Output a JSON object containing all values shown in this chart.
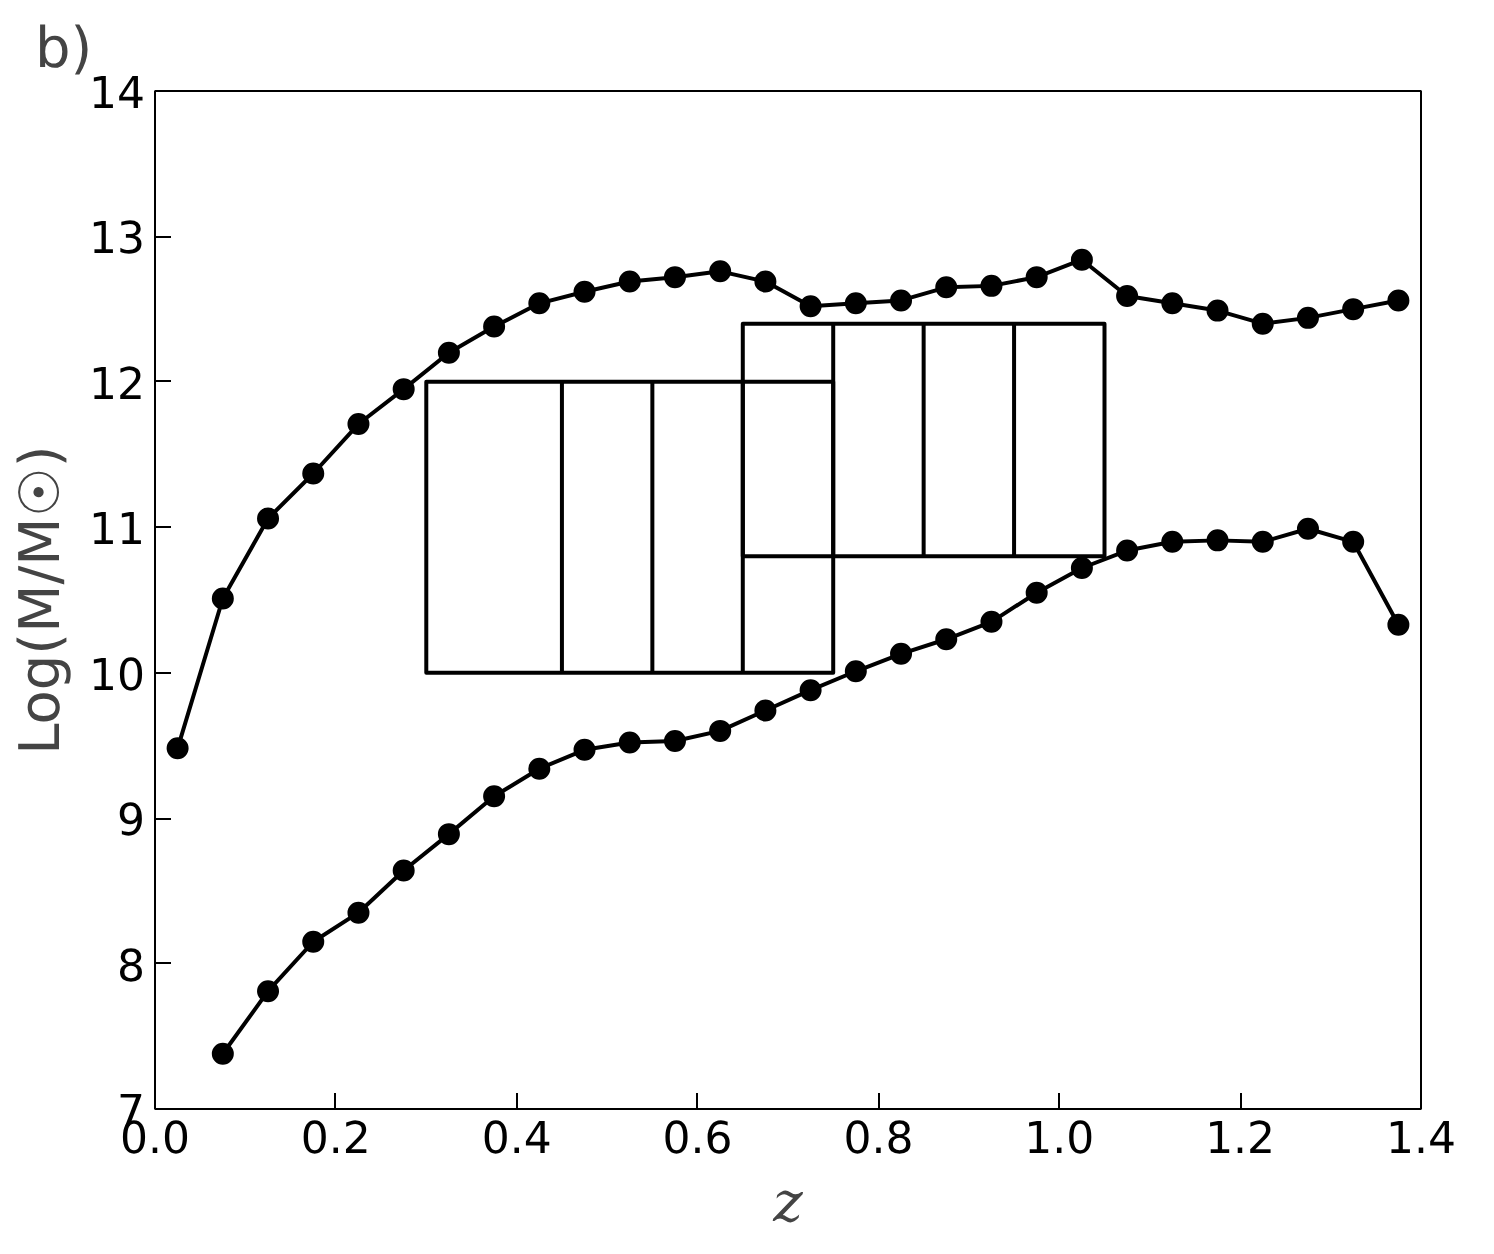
{
  "chart_data": {
    "type": "line",
    "title": "b)",
    "xlabel": "z",
    "ylabel": "Log(M/M☉)",
    "xlim": [
      0,
      1.4
    ],
    "ylim": [
      7,
      14
    ],
    "xticks": [
      {
        "value": 0,
        "label": "0.0"
      },
      {
        "value": 0.2,
        "label": "0.2"
      },
      {
        "value": 0.4,
        "label": "0.4"
      },
      {
        "value": 0.6,
        "label": "0.6"
      },
      {
        "value": 0.8,
        "label": "0.8"
      },
      {
        "value": 1,
        "label": "1.0"
      },
      {
        "value": 1.2,
        "label": "1.2"
      },
      {
        "value": 1.4,
        "label": "1.4"
      }
    ],
    "yticks": [
      7,
      8,
      9,
      10,
      11,
      12,
      13,
      14
    ],
    "grid": false,
    "marker": "circle",
    "line_style": "solid",
    "series": [
      {
        "color": "#000000",
        "x": [
          0.025,
          0.075,
          0.125,
          0.175,
          0.225,
          0.275,
          0.325,
          0.375,
          0.425,
          0.475,
          0.525,
          0.575,
          0.625,
          0.675,
          0.725,
          0.775,
          0.825,
          0.875,
          0.925,
          0.975,
          1.025,
          1.075,
          1.125,
          1.175,
          1.225,
          1.275,
          1.325,
          1.375
        ],
        "values": [
          9.48,
          10.51,
          11.06,
          11.37,
          11.71,
          11.95,
          12.2,
          12.38,
          12.54,
          12.62,
          12.69,
          12.72,
          12.76,
          12.69,
          12.52,
          12.54,
          12.56,
          12.65,
          12.66,
          12.72,
          12.84,
          12.59,
          12.54,
          12.49,
          12.4,
          12.44,
          12.5,
          12.56
        ]
      },
      {
        "color": "#000000",
        "x": [
          0.075,
          0.125,
          0.175,
          0.225,
          0.275,
          0.325,
          0.375,
          0.425,
          0.475,
          0.525,
          0.575,
          0.625,
          0.675,
          0.725,
          0.775,
          0.825,
          0.875,
          0.925,
          0.975,
          1.025,
          1.075,
          1.125,
          1.175,
          1.225,
          1.275,
          1.325,
          1.375
        ],
        "values": [
          7.38,
          7.81,
          8.15,
          8.35,
          8.64,
          8.89,
          9.15,
          9.34,
          9.47,
          9.52,
          9.53,
          9.6,
          9.74,
          9.88,
          10.01,
          10.13,
          10.23,
          10.35,
          10.55,
          10.72,
          10.84,
          10.9,
          10.91,
          10.9,
          10.99,
          10.9,
          10.33
        ]
      },
      {
        "color": "#000000",
        "marker": "none",
        "x": [
          0.3,
          0.3,
          0.45,
          0.45,
          0.55,
          0.55,
          0.65,
          0.65,
          0.75,
          0.75,
          0.3,
          0.3,
          0.75
        ],
        "values": [
          12,
          10,
          10,
          12,
          12,
          10,
          10,
          12,
          12,
          10,
          10,
          12,
          12
        ]
      },
      {
        "color": "#000000",
        "marker": "none",
        "x": [
          0.65,
          0.65,
          0.75,
          0.75,
          0.85,
          0.85,
          0.95,
          0.95,
          1.05,
          1.05,
          0.65,
          0.65,
          1.05
        ],
        "values": [
          10.8,
          12.4,
          12.4,
          10.8,
          10.8,
          12.4,
          12.4,
          10.8,
          10.8,
          12.4,
          12.4,
          10.8,
          10.8
        ]
      }
    ]
  }
}
